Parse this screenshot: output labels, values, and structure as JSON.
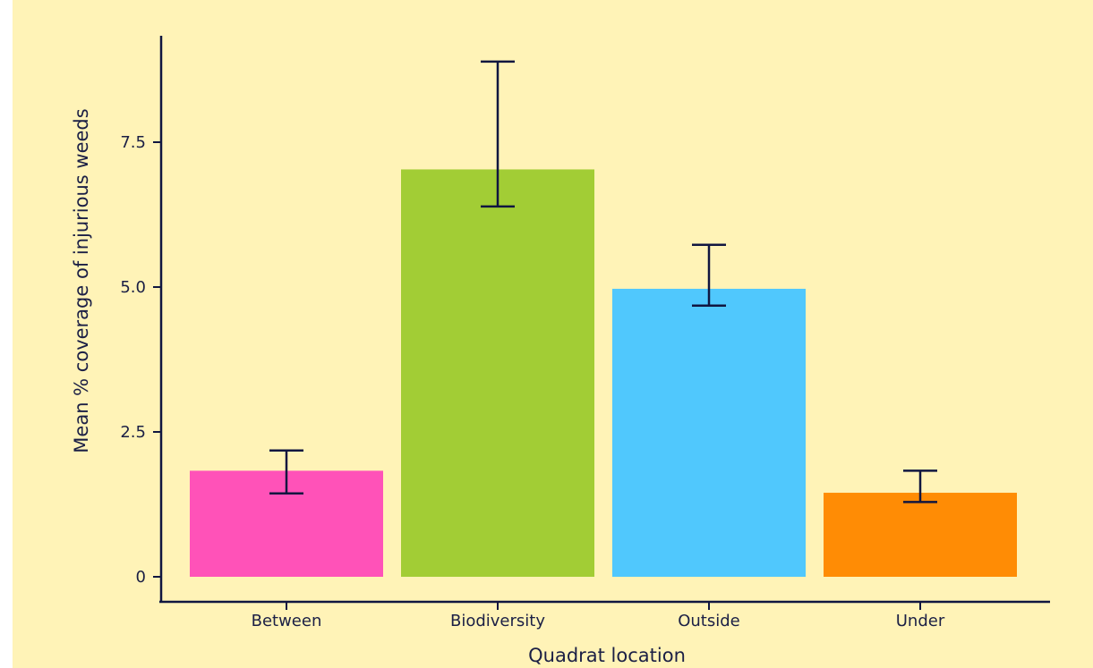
{
  "chart_data": {
    "type": "bar",
    "categories": [
      "Between",
      "Biodiversity",
      "Outside",
      "Under"
    ],
    "values": [
      1.83,
      7.03,
      4.97,
      1.45
    ],
    "error_low": [
      1.44,
      6.39,
      4.68,
      1.29
    ],
    "error_high": [
      2.18,
      8.89,
      5.73,
      1.83
    ],
    "title": "",
    "xlabel": "Quadrat location",
    "ylabel": "Mean % coverage of injurious weeds",
    "yticks": [
      0,
      2.5,
      5.0,
      7.5
    ],
    "ytick_labels": [
      "0",
      "2.5",
      "5.0",
      "7.5"
    ],
    "ylim": [
      0,
      9.4
    ],
    "grid": false,
    "legend": "none",
    "colors": {
      "background": "#fff3b7",
      "axis": "#101640",
      "bars": [
        "#ff52b8",
        "#a2cd35",
        "#50c8fd",
        "#ff8c05"
      ]
    }
  }
}
